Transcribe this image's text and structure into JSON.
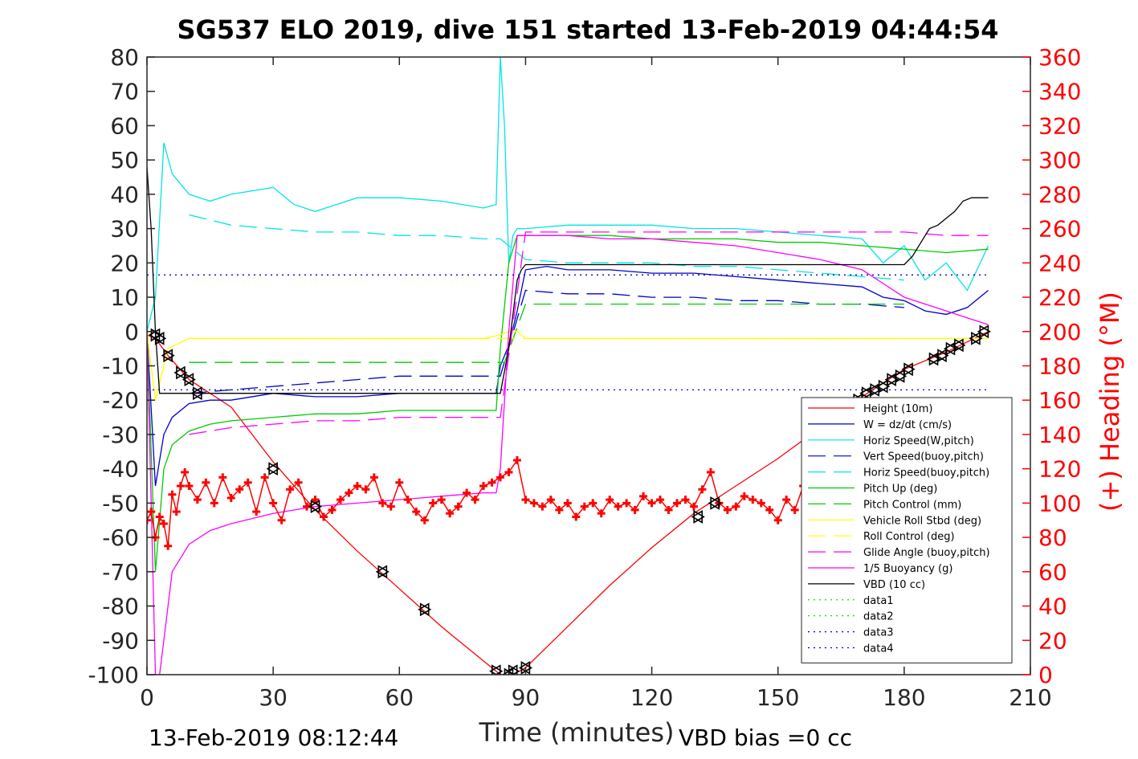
{
  "chart_data": {
    "type": "line",
    "title": "SG537 ELO 2019, dive 151 started 13-Feb-2019 04:44:54",
    "xlabel": "Time (minutes)",
    "ylabel": "",
    "ylabel_right": "(+) Heading (°M)",
    "xlim": [
      0,
      210
    ],
    "ylim": [
      -100,
      80
    ],
    "ylim_right": [
      0,
      360
    ],
    "x_ticks": [
      "0",
      "30",
      "60",
      "90",
      "120",
      "150",
      "180",
      "210"
    ],
    "y_ticks": [
      "80",
      "70",
      "60",
      "50",
      "40",
      "30",
      "20",
      "10",
      "0",
      "-10",
      "-20",
      "-30",
      "-40",
      "-50",
      "-60",
      "-70",
      "-80",
      "-90",
      "-100"
    ],
    "y_right_ticks": [
      "360",
      "340",
      "320",
      "300",
      "280",
      "260",
      "240",
      "220",
      "200",
      "180",
      "160",
      "140",
      "120",
      "100",
      "80",
      "60",
      "40",
      "20",
      "0"
    ],
    "footer_left": "13-Feb-2019 08:12:44",
    "footer_right": "VBD bias =0 cc",
    "grid": false,
    "legend_position": "bottom-right",
    "series": [
      {
        "name": "Height (10m)",
        "color": "#ff0000",
        "style": "solid",
        "x": [
          0,
          2,
          5,
          10,
          20,
          30,
          40,
          50,
          60,
          70,
          80,
          84,
          87,
          90,
          100,
          110,
          120,
          130,
          140,
          150,
          160,
          170,
          180,
          190,
          200
        ],
        "y": [
          -1,
          -2,
          -7,
          -14,
          -22,
          -38,
          -52,
          -64,
          -75,
          -86,
          -96,
          -100,
          -100,
          -98,
          -86,
          -74,
          -63,
          -53,
          -45,
          -37,
          -28,
          -19,
          -11,
          -6,
          0
        ]
      },
      {
        "name": "W = dz/dt (cm/s)",
        "color": "#0000cc",
        "style": "solid",
        "x": [
          0,
          2,
          4,
          6,
          10,
          15,
          20,
          30,
          40,
          50,
          60,
          70,
          80,
          83,
          84,
          86,
          88,
          90,
          95,
          100,
          110,
          120,
          130,
          140,
          150,
          160,
          170,
          175,
          180,
          185,
          190,
          195,
          200
        ],
        "y": [
          0,
          -45,
          -30,
          -25,
          -21,
          -20,
          -20,
          -18,
          -19,
          -19,
          -18,
          -18,
          -18,
          -18,
          -10,
          -4,
          6,
          18,
          19,
          18,
          18,
          17,
          17,
          16,
          15,
          14,
          13,
          10,
          9,
          6,
          5,
          7,
          12
        ]
      },
      {
        "name": "Horiz Speed(W,pitch)",
        "color": "#00e5e5",
        "style": "solid",
        "x": [
          0,
          2,
          4,
          6,
          10,
          15,
          20,
          25,
          30,
          35,
          40,
          50,
          60,
          70,
          80,
          83,
          84,
          85,
          86,
          87,
          88,
          90,
          100,
          110,
          120,
          130,
          140,
          150,
          160,
          170,
          175,
          180,
          185,
          190,
          195,
          200
        ],
        "y": [
          0,
          10,
          55,
          46,
          40,
          38,
          40,
          41,
          42,
          37,
          35,
          39,
          39,
          38,
          36,
          37,
          80,
          60,
          20,
          28,
          30,
          30,
          31,
          31,
          31,
          30,
          30,
          29,
          28,
          27,
          20,
          25,
          15,
          20,
          12,
          25
        ]
      },
      {
        "name": "Vert Speed(buoy,pitch)",
        "color": "#0000cc",
        "style": "dashed",
        "x": [
          10,
          20,
          30,
          40,
          50,
          60,
          70,
          80,
          84,
          90,
          100,
          110,
          120,
          130,
          140,
          150,
          160,
          170,
          180
        ],
        "y": [
          -18,
          -17,
          -16,
          -15,
          -14,
          -13,
          -13,
          -13,
          -13,
          12,
          11,
          11,
          10,
          10,
          9,
          9,
          8,
          8,
          7
        ]
      },
      {
        "name": "Horiz Speed(buoy,pitch)",
        "color": "#00e5e5",
        "style": "dashed",
        "x": [
          10,
          20,
          30,
          40,
          50,
          60,
          70,
          80,
          84,
          90,
          100,
          110,
          120,
          130,
          140,
          150,
          160,
          170,
          180
        ],
        "y": [
          34,
          31,
          30,
          29,
          29,
          28,
          28,
          27,
          27,
          21,
          20,
          20,
          20,
          19,
          19,
          18,
          17,
          16,
          15
        ]
      },
      {
        "name": "Pitch Up (deg)",
        "color": "#00cc00",
        "style": "solid",
        "x": [
          0,
          2,
          4,
          6,
          10,
          15,
          20,
          30,
          40,
          50,
          60,
          70,
          80,
          83,
          84,
          86,
          88,
          90,
          100,
          110,
          120,
          130,
          140,
          150,
          160,
          170,
          180,
          190,
          200
        ],
        "y": [
          0,
          -70,
          -40,
          -33,
          -29,
          -27,
          -26,
          -25,
          -24,
          -24,
          -23,
          -23,
          -23,
          -23,
          -5,
          20,
          28,
          28,
          28,
          28,
          27,
          27,
          27,
          26,
          26,
          25,
          24,
          23,
          24
        ]
      },
      {
        "name": "Pitch Control (mm)",
        "color": "#00cc00",
        "style": "dashed",
        "x": [
          10,
          84,
          85,
          90,
          180
        ],
        "y": [
          -9,
          -9,
          -9,
          8,
          8
        ]
      },
      {
        "name": "Vehicle Roll Stbd (deg)",
        "color": "#ffff00",
        "style": "solid",
        "x": [
          0,
          2,
          5,
          10,
          20,
          30,
          40,
          50,
          60,
          70,
          80,
          84,
          86,
          88,
          90,
          100,
          110,
          120,
          130,
          140,
          150,
          160,
          170,
          180,
          190,
          200
        ],
        "y": [
          0,
          -20,
          -5,
          -2,
          -2,
          -2,
          -2,
          -2,
          -2,
          -2,
          -2,
          -1,
          0,
          0,
          -2,
          -2,
          -2,
          -2,
          -2,
          -2,
          -2,
          -2,
          -2,
          -2,
          -2,
          -2
        ]
      },
      {
        "name": "Roll Control (deg)",
        "color": "#ffff00",
        "style": "dashed",
        "x": [
          10,
          84,
          90,
          180
        ],
        "y": [
          -2,
          -2,
          -2,
          -2
        ]
      },
      {
        "name": "Glide Angle (buoy,pitch)",
        "color": "#ff00ff",
        "style": "dashed",
        "x": [
          10,
          20,
          30,
          40,
          50,
          60,
          70,
          80,
          84,
          90,
          100,
          110,
          120,
          130,
          140,
          150,
          160,
          170,
          180,
          190,
          200
        ],
        "y": [
          -30,
          -28,
          -27,
          -26,
          -26,
          -25,
          -25,
          -25,
          -25,
          29,
          29,
          29,
          29,
          29,
          29,
          29,
          29,
          29,
          29,
          28,
          28
        ]
      },
      {
        "name": "1/5 Buoyancy (g)",
        "color": "#ff00ff",
        "style": "solid",
        "x": [
          0,
          2,
          3,
          4,
          6,
          10,
          15,
          20,
          30,
          40,
          50,
          60,
          70,
          80,
          83,
          84,
          86,
          88,
          90,
          100,
          110,
          120,
          130,
          140,
          150,
          160,
          170,
          175,
          180,
          185,
          190,
          195,
          200
        ],
        "y": [
          0,
          -100,
          -100,
          -90,
          -70,
          -62,
          -58,
          -56,
          -53,
          -51,
          -50,
          -49,
          -48,
          -47,
          -47,
          -40,
          0,
          28,
          28,
          28,
          27,
          27,
          26,
          25,
          23,
          21,
          18,
          14,
          10,
          8,
          6,
          4,
          2
        ]
      },
      {
        "name": "VBD (10 cc)",
        "color": "#000000",
        "style": "solid",
        "x": [
          0,
          1,
          2,
          3,
          83,
          84,
          86,
          88,
          89,
          90,
          160,
          170,
          180,
          182,
          184,
          186,
          188,
          190,
          192,
          194,
          196,
          200
        ],
        "y": [
          48,
          30,
          0,
          -18,
          -18,
          -18,
          -5,
          15,
          18,
          19.5,
          19.5,
          19.5,
          19.5,
          22,
          26,
          30,
          31,
          33,
          35,
          38,
          39,
          39
        ]
      },
      {
        "name": "data1",
        "color": "#00cc00",
        "style": "dotted",
        "x": [],
        "y": []
      },
      {
        "name": "data2",
        "color": "#00cc00",
        "style": "dotted",
        "x": [],
        "y": []
      },
      {
        "name": "data3",
        "color": "#0000cc",
        "style": "dotted",
        "x": [
          0,
          200
        ],
        "y": [
          16.5,
          16.5
        ]
      },
      {
        "name": "data4",
        "color": "#0000cc",
        "style": "dotted",
        "x": [
          0,
          200
        ],
        "y": [
          -17,
          -17
        ]
      }
    ],
    "heading_series": {
      "color": "#ff0000",
      "axis": "right",
      "x": [
        0,
        1,
        2,
        3,
        4,
        5,
        6,
        7,
        8,
        9,
        10,
        12,
        14,
        16,
        18,
        20,
        22,
        24,
        26,
        28,
        30,
        32,
        34,
        36,
        38,
        40,
        42,
        44,
        46,
        48,
        50,
        52,
        54,
        56,
        58,
        60,
        62,
        64,
        66,
        68,
        70,
        72,
        74,
        76,
        78,
        80,
        82,
        84,
        86,
        88,
        90,
        92,
        94,
        96,
        98,
        100,
        102,
        104,
        106,
        108,
        110,
        112,
        114,
        116,
        118,
        120,
        122,
        124,
        126,
        128,
        130,
        132,
        134,
        136,
        138,
        140,
        142,
        144,
        146,
        148,
        150,
        152,
        154,
        156
      ],
      "y": [
        90,
        95,
        80,
        92,
        88,
        75,
        105,
        95,
        110,
        118,
        110,
        102,
        112,
        100,
        115,
        103,
        108,
        112,
        95,
        115,
        100,
        90,
        108,
        112,
        98,
        102,
        92,
        96,
        102,
        106,
        110,
        108,
        115,
        100,
        98,
        112,
        102,
        95,
        90,
        100,
        102,
        94,
        98,
        106,
        102,
        110,
        112,
        115,
        118,
        125,
        102,
        100,
        98,
        102,
        96,
        100,
        92,
        98,
        100,
        94,
        102,
        98,
        100,
        96,
        104,
        100,
        102,
        96,
        100,
        102,
        98,
        108,
        118,
        100,
        96,
        98,
        104,
        102,
        100,
        96,
        90,
        102,
        96,
        110
      ]
    },
    "markers": {
      "color": "#000000",
      "x": [
        2,
        3,
        5,
        8,
        10,
        12,
        30,
        40,
        56,
        66,
        83,
        86,
        87,
        90,
        131,
        135,
        169,
        171,
        173,
        175,
        177,
        179,
        181,
        187,
        189,
        191,
        193,
        197,
        199
      ],
      "y": [
        -1,
        -2,
        -7,
        -12,
        -14,
        -18,
        -40,
        -51,
        -70,
        -81,
        -99,
        -100,
        -99,
        -98,
        -54,
        -50,
        -20,
        -18,
        -17,
        -16,
        -14,
        -13,
        -11,
        -8,
        -7,
        -5,
        -4,
        -2,
        0
      ]
    }
  }
}
